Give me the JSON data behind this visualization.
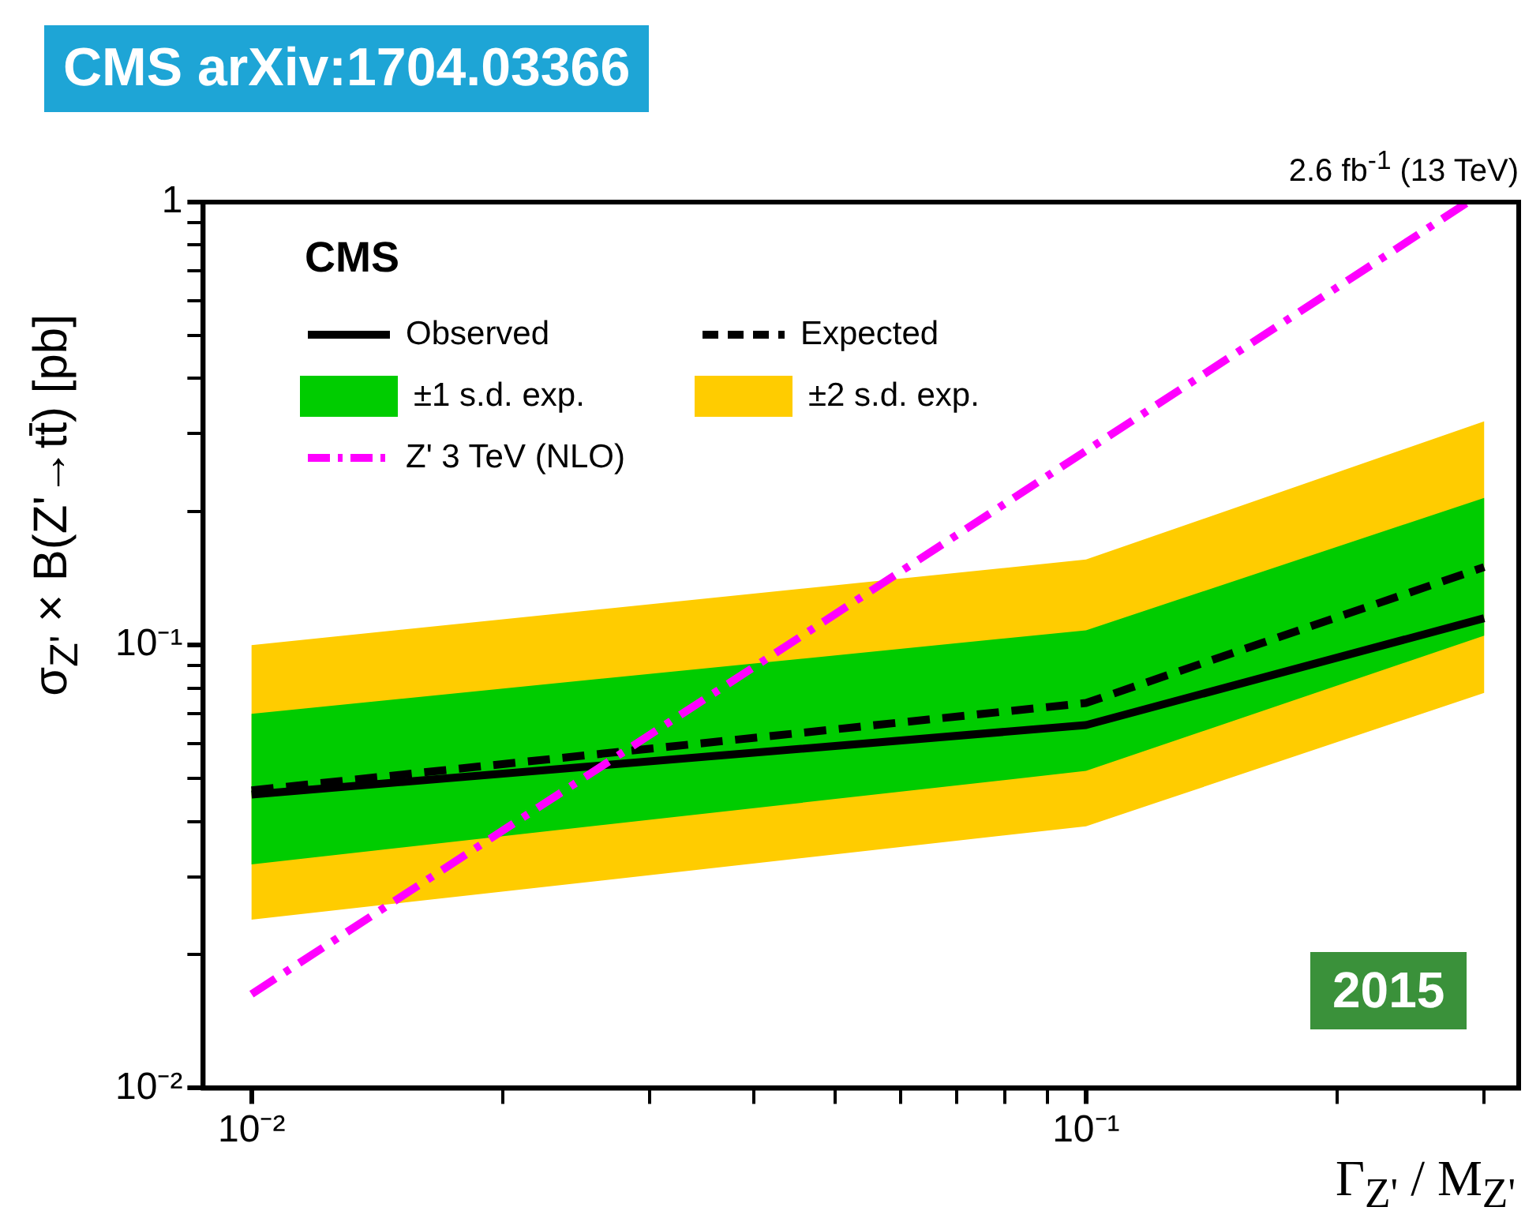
{
  "chart_data": {
    "type": "line",
    "title": "CMS arXiv:1704.03366",
    "xlabel": "Γ$_{Z'}$ / M$_{Z'}$",
    "ylabel": "σ$_{Z'}$ × B(Z'→tt̄) [pb]",
    "annotations": [
      "CMS",
      "2.6 fb$^{-1}$ (13 TeV)",
      "2015"
    ],
    "log": "xy",
    "grid": false,
    "legend": "top left",
    "marker": "none",
    "xlim": [
      0.00875,
      0.33
    ],
    "ylim": [
      0.01,
      1
    ],
    "xticks": [
      {
        "value": 0.01,
        "label": "10⁻²"
      },
      {
        "value": 0.02,
        "label": null
      },
      {
        "value": 0.03,
        "label": null
      },
      {
        "value": 0.04,
        "label": null
      },
      {
        "value": 0.05,
        "label": null
      },
      {
        "value": 0.06,
        "label": null
      },
      {
        "value": 0.07,
        "label": null
      },
      {
        "value": 0.08,
        "label": null
      },
      {
        "value": 0.09,
        "label": null
      },
      {
        "value": 0.1,
        "label": "10⁻¹"
      },
      {
        "value": 0.2,
        "label": null
      },
      {
        "value": 0.3,
        "label": null
      }
    ],
    "yticks": [
      {
        "value": 0.01,
        "label": "10⁻²"
      },
      {
        "value": 0.02,
        "label": null
      },
      {
        "value": 0.03,
        "label": null
      },
      {
        "value": 0.04,
        "label": null
      },
      {
        "value": 0.05,
        "label": null
      },
      {
        "value": 0.06,
        "label": null
      },
      {
        "value": 0.07,
        "label": null
      },
      {
        "value": 0.08,
        "label": null
      },
      {
        "value": 0.09,
        "label": null
      },
      {
        "value": 0.1,
        "label": "10⁻¹"
      },
      {
        "value": 0.2,
        "label": null
      },
      {
        "value": 0.3,
        "label": null
      },
      {
        "value": 0.4,
        "label": null
      },
      {
        "value": 0.5,
        "label": null
      },
      {
        "value": 0.6,
        "label": null
      },
      {
        "value": 0.7,
        "label": null
      },
      {
        "value": 0.8,
        "label": null
      },
      {
        "value": 0.9,
        "label": null
      },
      {
        "value": 1,
        "label": "1"
      }
    ],
    "series": [
      {
        "name": "±2 s.d. exp.",
        "type": "line",
        "color": "#ffcc00",
        "x": [
          0.01,
          0.1,
          0.3
        ],
        "values": [
          null,
          null,
          null
        ],
        "lower": [
          0.024,
          0.039,
          0.078
        ],
        "upper": [
          0.1,
          0.156,
          0.32
        ]
      },
      {
        "name": "±1 s.d. exp.",
        "type": "line",
        "color": "#00cc00",
        "x": [
          0.01,
          0.1,
          0.3
        ],
        "values": [
          null,
          null,
          null
        ],
        "lower": [
          0.032,
          0.052,
          0.105
        ],
        "upper": [
          0.07,
          0.108,
          0.215
        ]
      },
      {
        "name": "Observed",
        "type": "line",
        "color": "#000000",
        "line_style": "solid",
        "x": [
          0.01,
          0.1,
          0.3
        ],
        "values": [
          0.046,
          0.066,
          0.115
        ]
      },
      {
        "name": "Expected",
        "type": "line",
        "color": "#000000",
        "line_style": "dashed",
        "x": [
          0.01,
          0.1,
          0.3
        ],
        "values": [
          0.047,
          0.074,
          0.15
        ]
      },
      {
        "name": "Z' 3 TeV (NLO)",
        "type": "line",
        "color": "#ff00ff",
        "line_style": "dashdot",
        "x": [
          0.01,
          0.287
        ],
        "values": [
          0.0163,
          1
        ]
      }
    ]
  }
}
